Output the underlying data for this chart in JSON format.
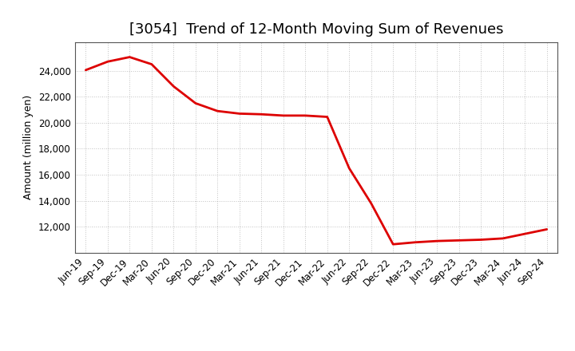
{
  "title": "[3054]  Trend of 12-Month Moving Sum of Revenues",
  "ylabel": "Amount (million yen)",
  "line_color": "#dd0000",
  "line_width": 2.0,
  "background_color": "#ffffff",
  "grid_color": "#999999",
  "x_labels": [
    "Jun-19",
    "Sep-19",
    "Dec-19",
    "Mar-20",
    "Jun-20",
    "Sep-20",
    "Dec-20",
    "Mar-21",
    "Jun-21",
    "Sep-21",
    "Dec-21",
    "Mar-22",
    "Jun-22",
    "Sep-22",
    "Dec-22",
    "Mar-23",
    "Jun-23",
    "Sep-23",
    "Dec-23",
    "Mar-24",
    "Jun-24",
    "Sep-24"
  ],
  "y_values": [
    24050,
    24700,
    25050,
    24500,
    22800,
    21500,
    20900,
    20700,
    20650,
    20550,
    20550,
    20450,
    16500,
    13800,
    10650,
    10800,
    10900,
    10950,
    11000,
    11100,
    11450,
    11800
  ],
  "yticks": [
    12000,
    14000,
    16000,
    18000,
    20000,
    22000,
    24000
  ],
  "ylim_min": 10000,
  "ylim_max": 26200,
  "title_fontsize": 13,
  "axis_fontsize": 9,
  "tick_fontsize": 8.5,
  "title_fontweight": "normal"
}
